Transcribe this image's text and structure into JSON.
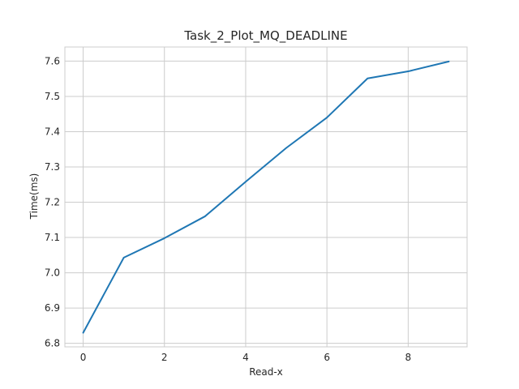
{
  "chart_data": {
    "type": "line",
    "title": "Task_2_Plot_MQ_DEADLINE",
    "xlabel": "Read-x",
    "ylabel": "Time(ms)",
    "x": [
      0,
      1,
      2,
      3,
      4,
      5,
      6,
      7,
      8,
      9
    ],
    "series": [
      {
        "values": [
          6.83,
          7.043,
          7.098,
          7.16,
          7.258,
          7.354,
          7.44,
          7.551,
          7.571,
          7.599
        ],
        "color": "#1f77b4"
      }
    ],
    "xlim": [
      -0.45,
      9.45
    ],
    "ylim": [
      6.79,
      7.64
    ],
    "xticks": [
      0,
      2,
      4,
      6,
      8
    ],
    "yticks": [
      6.8,
      6.9,
      7.0,
      7.1,
      7.2,
      7.3,
      7.4,
      7.5,
      7.6
    ],
    "ytick_labels": [
      "6.8",
      "6.9",
      "7.0",
      "7.1",
      "7.2",
      "7.3",
      "7.4",
      "7.5",
      "7.6"
    ],
    "grid": true,
    "legend": "none"
  }
}
